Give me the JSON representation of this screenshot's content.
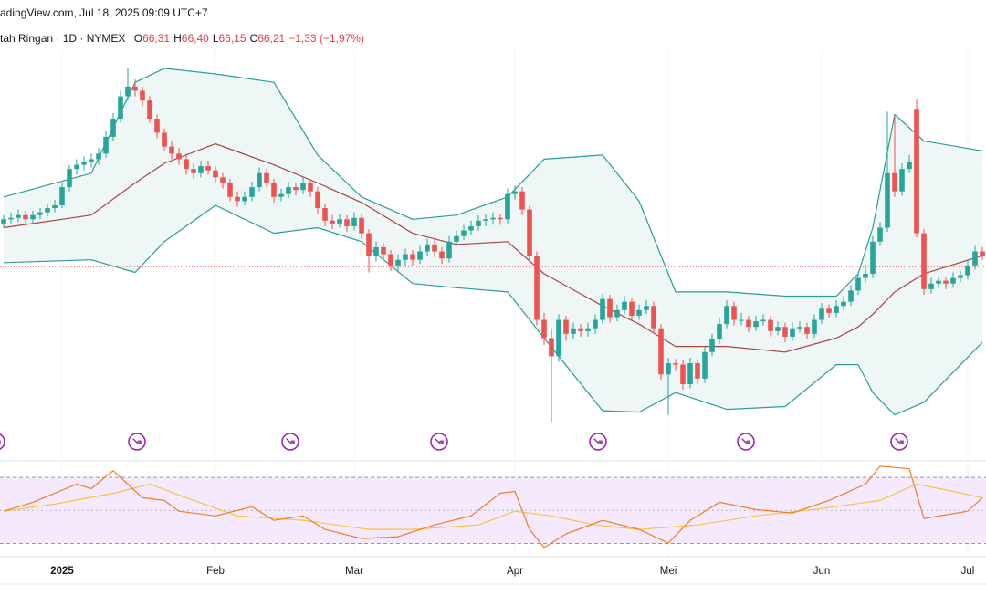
{
  "chart_data": {
    "type": "candlestick",
    "subtitle": "adingView.com, Jul 18, 2025 09:09 UTC+7",
    "title": "tah Ringan · 1D · NYMEX",
    "legend": {
      "keys": [
        "O",
        "H",
        "L",
        "C"
      ],
      "values": [
        66.31,
        66.4,
        66.15,
        66.21
      ],
      "value_labels": [
        "66,31",
        "66,40",
        "66,15",
        "66,21"
      ],
      "change": "−1,33 (−1,97%)"
    },
    "categories": [
      null,
      null,
      null,
      null,
      null,
      null,
      null,
      null,
      "2025",
      null,
      null,
      null,
      null,
      null,
      null,
      null,
      null,
      null,
      null,
      null,
      null,
      null,
      null,
      null,
      null,
      null,
      null,
      null,
      null,
      "Feb",
      null,
      null,
      null,
      null,
      null,
      null,
      null,
      null,
      null,
      null,
      null,
      null,
      null,
      null,
      null,
      null,
      null,
      null,
      "Mar",
      null,
      null,
      null,
      null,
      null,
      null,
      null,
      null,
      null,
      null,
      null,
      null,
      null,
      null,
      null,
      null,
      null,
      null,
      null,
      null,
      null,
      "Apr",
      null,
      null,
      null,
      null,
      null,
      null,
      null,
      null,
      null,
      null,
      null,
      null,
      null,
      null,
      null,
      null,
      null,
      null,
      null,
      null,
      "Mei",
      null,
      null,
      null,
      null,
      null,
      null,
      null,
      null,
      null,
      null,
      null,
      null,
      null,
      null,
      null,
      null,
      null,
      null,
      null,
      null,
      "Jun",
      null,
      null,
      null,
      null,
      null,
      null,
      null,
      null,
      null,
      null,
      null,
      null,
      null,
      null,
      null,
      null,
      null,
      null,
      null,
      "Jul",
      null,
      null
    ],
    "ohlc": [
      [
        69.3,
        69.9,
        69.0,
        69.6
      ],
      [
        69.6,
        70.1,
        69.3,
        69.7
      ],
      [
        69.7,
        70.3,
        69.4,
        69.9
      ],
      [
        69.9,
        70.2,
        69.3,
        69.6
      ],
      [
        69.6,
        70.2,
        69.3,
        69.9
      ],
      [
        69.9,
        70.4,
        69.6,
        70.1
      ],
      [
        70.1,
        70.7,
        69.8,
        70.4
      ],
      [
        70.4,
        71.0,
        70.1,
        70.6
      ],
      [
        70.6,
        72.2,
        70.4,
        71.9
      ],
      [
        71.9,
        73.5,
        71.6,
        73.2
      ],
      [
        73.2,
        73.9,
        72.8,
        73.5
      ],
      [
        73.5,
        74.1,
        73.1,
        73.7
      ],
      [
        73.7,
        74.3,
        73.3,
        73.9
      ],
      [
        73.9,
        74.7,
        73.5,
        74.3
      ],
      [
        74.3,
        75.9,
        74.0,
        75.5
      ],
      [
        75.5,
        77.2,
        75.2,
        76.8
      ],
      [
        76.8,
        78.8,
        76.5,
        78.4
      ],
      [
        78.4,
        80.4,
        78.1,
        79.1
      ],
      [
        79.1,
        79.6,
        78.4,
        78.8
      ],
      [
        78.8,
        79.1,
        77.7,
        78.1
      ],
      [
        78.1,
        78.4,
        76.5,
        76.8
      ],
      [
        76.8,
        77.1,
        75.4,
        75.8
      ],
      [
        75.8,
        76.1,
        74.5,
        74.8
      ],
      [
        74.8,
        75.2,
        73.9,
        74.3
      ],
      [
        74.3,
        74.7,
        73.5,
        73.9
      ],
      [
        73.9,
        74.3,
        72.8,
        73.2
      ],
      [
        73.2,
        73.6,
        72.5,
        72.9
      ],
      [
        72.9,
        73.8,
        72.6,
        73.4
      ],
      [
        73.4,
        73.8,
        72.8,
        73.1
      ],
      [
        73.1,
        73.4,
        72.2,
        72.6
      ],
      [
        72.6,
        72.9,
        71.8,
        72.2
      ],
      [
        72.2,
        72.5,
        70.9,
        71.2
      ],
      [
        71.2,
        71.6,
        70.5,
        70.9
      ],
      [
        70.9,
        71.6,
        70.6,
        71.2
      ],
      [
        71.2,
        72.3,
        70.9,
        71.9
      ],
      [
        71.9,
        73.3,
        71.6,
        72.9
      ],
      [
        72.9,
        73.2,
        71.9,
        72.2
      ],
      [
        72.2,
        72.5,
        70.8,
        71.2
      ],
      [
        71.2,
        71.8,
        70.9,
        71.4
      ],
      [
        71.4,
        72.3,
        71.1,
        71.9
      ],
      [
        71.9,
        72.2,
        71.3,
        71.7
      ],
      [
        71.7,
        72.6,
        71.4,
        72.2
      ],
      [
        72.2,
        72.5,
        71.2,
        71.6
      ],
      [
        71.6,
        71.9,
        70.0,
        70.4
      ],
      [
        70.4,
        70.7,
        69.1,
        69.5
      ],
      [
        69.5,
        69.9,
        68.9,
        69.3
      ],
      [
        69.3,
        70.0,
        69.0,
        69.6
      ],
      [
        69.6,
        69.9,
        68.7,
        69.1
      ],
      [
        69.1,
        70.1,
        68.8,
        69.7
      ],
      [
        69.7,
        70.0,
        68.2,
        68.6
      ],
      [
        68.6,
        68.9,
        65.8,
        67.0
      ],
      [
        67.0,
        68.0,
        66.6,
        67.6
      ],
      [
        67.6,
        67.9,
        66.7,
        67.1
      ],
      [
        67.1,
        67.4,
        65.9,
        66.3
      ],
      [
        66.3,
        67.1,
        65.9,
        66.7
      ],
      [
        66.7,
        67.5,
        66.3,
        67.1
      ],
      [
        67.1,
        67.4,
        66.3,
        66.7
      ],
      [
        66.7,
        67.7,
        66.4,
        67.3
      ],
      [
        67.3,
        68.2,
        67.0,
        67.8
      ],
      [
        67.8,
        68.1,
        66.9,
        67.3
      ],
      [
        67.3,
        67.6,
        66.4,
        66.8
      ],
      [
        66.8,
        68.4,
        66.5,
        68.0
      ],
      [
        68.0,
        68.8,
        67.7,
        68.4
      ],
      [
        68.4,
        69.2,
        68.1,
        68.8
      ],
      [
        68.8,
        69.5,
        68.5,
        69.1
      ],
      [
        69.1,
        69.9,
        68.8,
        69.5
      ],
      [
        69.5,
        70.0,
        69.1,
        69.6
      ],
      [
        69.6,
        70.1,
        69.2,
        69.7
      ],
      [
        69.7,
        70.0,
        69.2,
        69.6
      ],
      [
        69.6,
        71.8,
        69.3,
        71.4
      ],
      [
        71.4,
        72.0,
        71.0,
        71.6
      ],
      [
        71.6,
        71.9,
        69.9,
        70.3
      ],
      [
        70.3,
        70.6,
        66.6,
        67.0
      ],
      [
        67.0,
        67.3,
        62.0,
        62.4
      ],
      [
        62.4,
        62.9,
        60.6,
        61.1
      ],
      [
        61.1,
        61.8,
        55.1,
        59.8
      ],
      [
        59.8,
        62.8,
        59.4,
        62.4
      ],
      [
        62.4,
        62.7,
        60.9,
        61.4
      ],
      [
        61.4,
        62.2,
        61.0,
        61.8
      ],
      [
        61.8,
        62.1,
        61.2,
        61.6
      ],
      [
        61.6,
        62.2,
        61.2,
        61.8
      ],
      [
        61.8,
        62.8,
        61.4,
        62.4
      ],
      [
        62.4,
        64.3,
        62.1,
        63.9
      ],
      [
        63.9,
        64.2,
        62.2,
        62.6
      ],
      [
        62.6,
        63.5,
        62.3,
        63.1
      ],
      [
        63.1,
        64.1,
        62.8,
        63.7
      ],
      [
        63.7,
        64.0,
        62.3,
        62.7
      ],
      [
        62.7,
        63.5,
        62.4,
        63.1
      ],
      [
        63.1,
        63.8,
        62.8,
        63.4
      ],
      [
        63.4,
        63.7,
        61.4,
        61.8
      ],
      [
        61.8,
        62.1,
        58.1,
        58.5
      ],
      [
        58.5,
        59.7,
        55.6,
        59.3
      ],
      [
        59.3,
        59.6,
        58.8,
        59.2
      ],
      [
        59.2,
        59.5,
        57.4,
        57.8
      ],
      [
        57.8,
        59.7,
        57.5,
        59.3
      ],
      [
        59.3,
        59.6,
        57.8,
        58.2
      ],
      [
        58.2,
        60.5,
        57.9,
        60.1
      ],
      [
        60.1,
        61.4,
        59.8,
        61.0
      ],
      [
        61.0,
        62.5,
        60.7,
        62.1
      ],
      [
        62.1,
        63.8,
        61.8,
        63.4
      ],
      [
        63.4,
        63.7,
        62.0,
        62.4
      ],
      [
        62.4,
        62.9,
        62.0,
        62.4
      ],
      [
        62.4,
        62.7,
        61.5,
        61.9
      ],
      [
        61.9,
        62.7,
        61.6,
        62.3
      ],
      [
        62.3,
        62.8,
        62.0,
        62.4
      ],
      [
        62.4,
        62.7,
        61.2,
        61.6
      ],
      [
        61.6,
        62.3,
        61.3,
        61.9
      ],
      [
        61.9,
        62.2,
        60.8,
        61.2
      ],
      [
        61.2,
        62.2,
        60.9,
        61.8
      ],
      [
        61.8,
        62.3,
        61.5,
        61.9
      ],
      [
        61.9,
        62.2,
        61.0,
        61.4
      ],
      [
        61.4,
        62.8,
        61.1,
        62.4
      ],
      [
        62.4,
        63.6,
        62.1,
        63.2
      ],
      [
        63.2,
        63.5,
        62.5,
        62.9
      ],
      [
        62.9,
        63.8,
        62.6,
        63.4
      ],
      [
        63.4,
        64.1,
        63.1,
        63.7
      ],
      [
        63.7,
        64.9,
        63.4,
        64.5
      ],
      [
        64.5,
        65.8,
        64.2,
        65.4
      ],
      [
        65.4,
        66.2,
        65.1,
        65.7
      ],
      [
        65.7,
        68.4,
        65.4,
        68.0
      ],
      [
        68.0,
        69.4,
        67.7,
        69.0
      ],
      [
        69.0,
        77.3,
        68.7,
        72.9
      ],
      [
        72.9,
        77.0,
        71.2,
        71.6
      ],
      [
        71.6,
        73.6,
        71.3,
        73.2
      ],
      [
        73.2,
        74.2,
        72.9,
        73.7
      ],
      [
        77.5,
        78.2,
        68.3,
        68.6
      ],
      [
        68.6,
        68.9,
        64.2,
        64.6
      ],
      [
        64.6,
        65.4,
        64.3,
        65.0
      ],
      [
        65.0,
        65.5,
        64.7,
        65.2
      ],
      [
        65.2,
        65.5,
        64.6,
        65.0
      ],
      [
        65.0,
        65.8,
        64.7,
        65.4
      ],
      [
        65.4,
        65.9,
        65.1,
        65.6
      ],
      [
        65.6,
        66.7,
        65.3,
        66.3
      ],
      [
        66.3,
        67.7,
        66.0,
        67.3
      ],
      [
        67.3,
        67.6,
        66.7,
        67.0
      ]
    ],
    "up_color": "#26a69a",
    "down_color": "#ef5350",
    "ylim": [
      54.6,
      81.7
    ],
    "bollinger": {
      "x": [
        0,
        12,
        18,
        22,
        29,
        37,
        43,
        49,
        56,
        62,
        69,
        74,
        82,
        87,
        92,
        99,
        107,
        114,
        117,
        119,
        122,
        126,
        134
      ],
      "upper": [
        71.2,
        72.9,
        79.4,
        80.4,
        80.0,
        79.4,
        74.2,
        71.2,
        69.6,
        69.9,
        71.2,
        73.9,
        74.2,
        70.9,
        64.4,
        64.4,
        64.1,
        64.1,
        65.7,
        69.0,
        77.1,
        75.2,
        74.5
      ],
      "basis": [
        69.0,
        69.9,
        72.2,
        73.6,
        75.0,
        73.5,
        72.2,
        70.8,
        68.6,
        67.8,
        68.0,
        65.7,
        63.4,
        62.1,
        60.5,
        60.5,
        60.1,
        61.1,
        61.9,
        62.8,
        64.4,
        65.7,
        67.0
      ],
      "lower": [
        66.5,
        66.7,
        65.8,
        68.0,
        70.6,
        68.6,
        69.0,
        68.0,
        65.0,
        64.7,
        64.4,
        61.1,
        55.9,
        55.8,
        57.2,
        56.0,
        56.2,
        59.2,
        59.2,
        57.2,
        55.6,
        56.5,
        60.8
      ],
      "band_color": "#2a9d9c",
      "basis_color": "#a8453f",
      "fill_color": "#eef6f6"
    },
    "rsi": {
      "x": [
        0,
        4,
        10,
        12,
        15,
        17,
        19,
        22,
        24,
        29,
        34,
        37,
        41,
        44,
        49,
        54,
        59,
        64,
        68,
        70,
        72,
        74,
        77,
        82,
        87,
        91,
        94,
        98,
        103,
        108,
        113,
        118,
        120,
        124,
        126,
        132,
        134
      ],
      "values": [
        49.5,
        54.9,
        65.9,
        63.2,
        74.1,
        65.9,
        57.7,
        56.0,
        49.5,
        46.7,
        52.2,
        44.0,
        46.7,
        38.5,
        33.0,
        34.1,
        41.2,
        46.7,
        60.4,
        61.5,
        38.5,
        27.5,
        35.8,
        44.0,
        38.5,
        30.3,
        44.0,
        54.9,
        50.5,
        48.4,
        56.0,
        65.9,
        76.8,
        75.2,
        45.1,
        49.5,
        57.7
      ],
      "color": "#f57c1f",
      "ma_x": [
        0,
        7,
        15,
        20,
        25,
        32,
        41,
        50,
        56,
        65,
        70,
        75,
        81,
        87,
        95,
        103,
        112,
        120,
        125,
        130,
        134
      ],
      "ma_values": [
        49.5,
        53.8,
        60.4,
        65.9,
        57.7,
        46.7,
        44.0,
        38.5,
        38.5,
        41.2,
        49.5,
        46.7,
        41.2,
        38.5,
        41.2,
        46.7,
        51.1,
        56.0,
        65.9,
        61.5,
        57.7
      ],
      "ma_color": "#f5c542",
      "ylim": [
        22,
        80
      ],
      "bands": [
        30,
        70
      ],
      "mid": 50,
      "band_fill": "#f4e9fd"
    }
  }
}
